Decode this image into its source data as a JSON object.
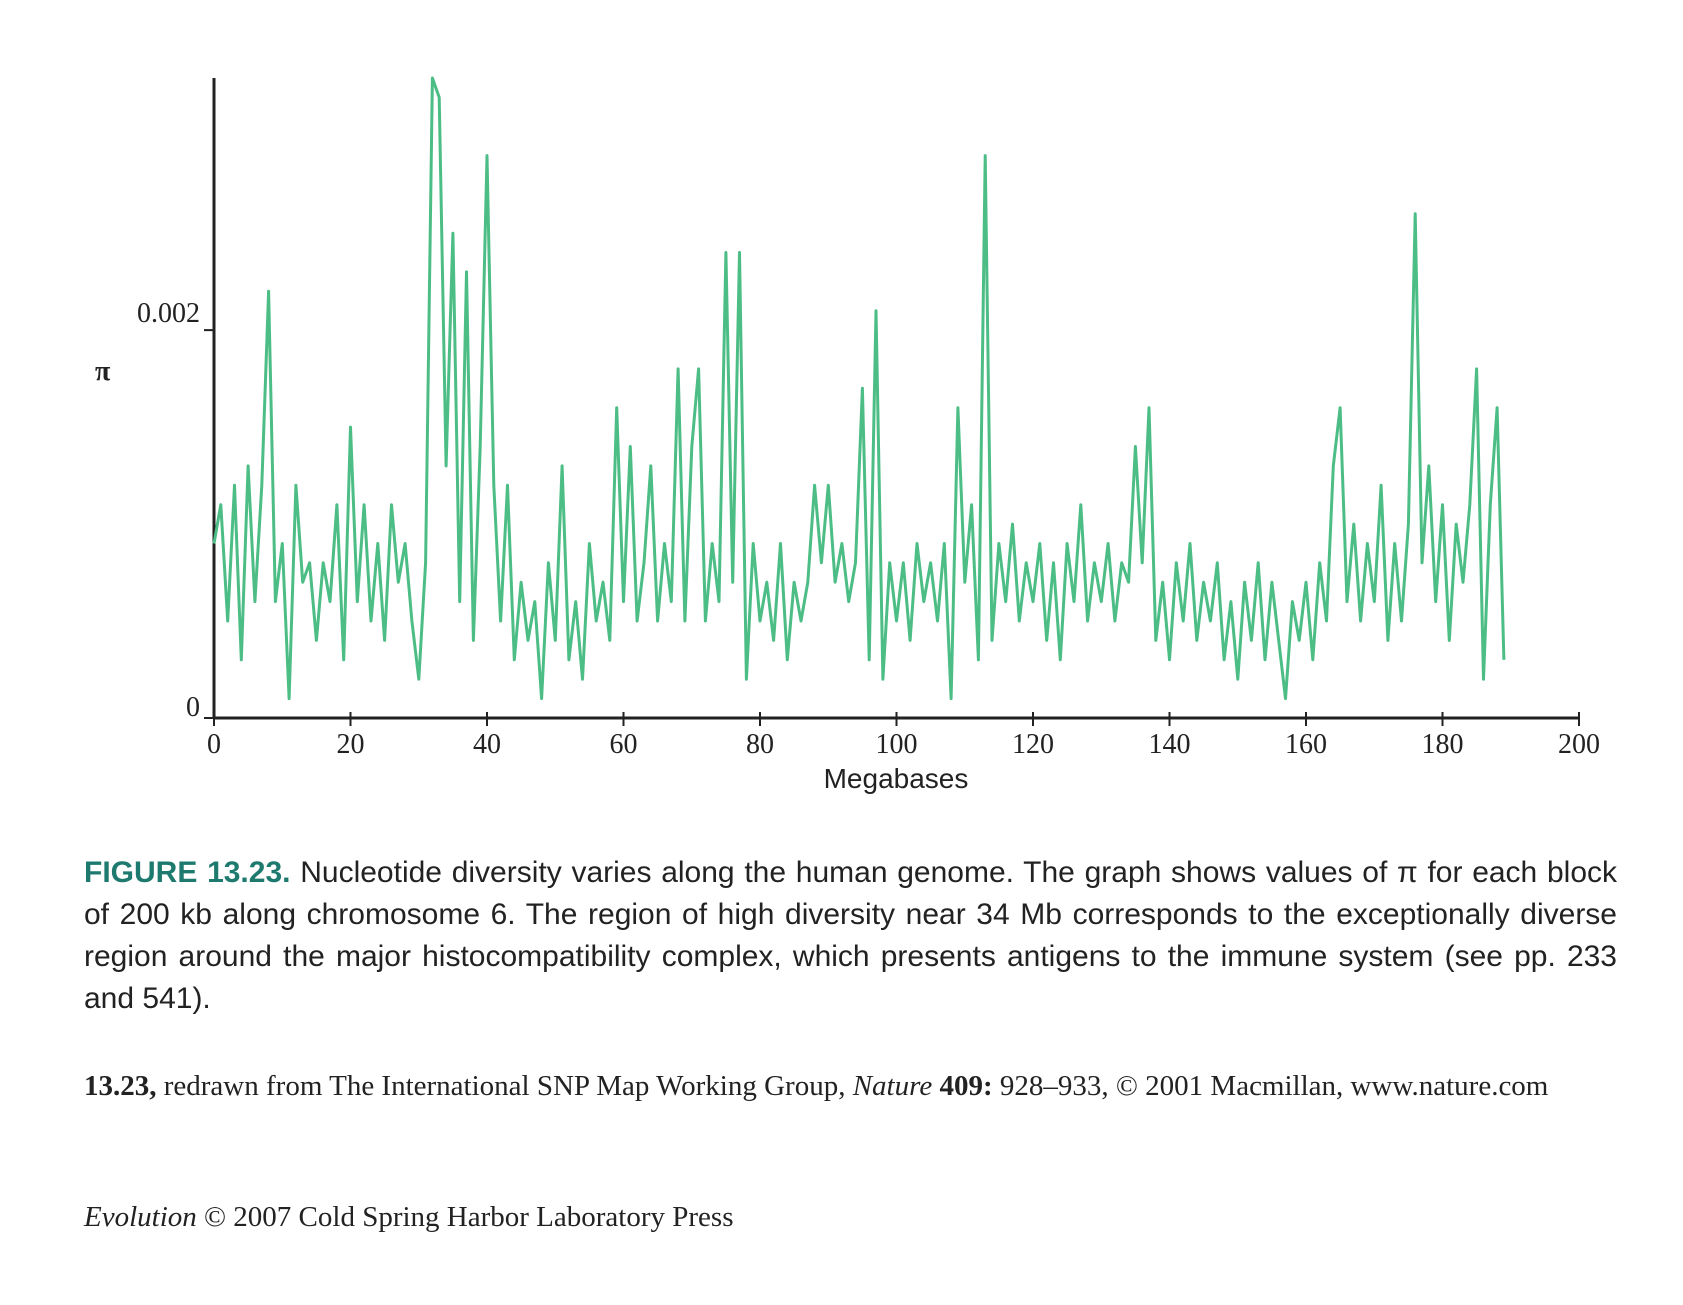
{
  "chart_data": {
    "type": "line",
    "ylabel": "π",
    "xlabel": "Megabases",
    "color": "#4dbd86",
    "xlim": [
      0,
      200
    ],
    "xticks": [
      0,
      20,
      40,
      60,
      80,
      100,
      120,
      140,
      160,
      180,
      200
    ],
    "ylim": [
      0,
      0.0033
    ],
    "yticks": [
      0,
      0.002
    ],
    "x": [
      0,
      1,
      2,
      3,
      4,
      5,
      6,
      7,
      8,
      9,
      10,
      11,
      12,
      13,
      14,
      15,
      16,
      17,
      18,
      19,
      20,
      21,
      22,
      23,
      24,
      25,
      26,
      27,
      28,
      29,
      30,
      31,
      32,
      33,
      34,
      35,
      36,
      37,
      38,
      39,
      40,
      41,
      42,
      43,
      44,
      45,
      46,
      47,
      48,
      49,
      50,
      51,
      52,
      53,
      54,
      55,
      56,
      57,
      58,
      59,
      60,
      61,
      62,
      63,
      64,
      65,
      66,
      67,
      68,
      69,
      70,
      71,
      72,
      73,
      74,
      75,
      76,
      77,
      78,
      79,
      80,
      81,
      82,
      83,
      84,
      85,
      86,
      87,
      88,
      89,
      90,
      91,
      92,
      93,
      94,
      95,
      96,
      97,
      98,
      99,
      100,
      101,
      102,
      103,
      104,
      105,
      106,
      107,
      108,
      109,
      110,
      111,
      112,
      113,
      114,
      115,
      116,
      117,
      118,
      119,
      120,
      121,
      122,
      123,
      124,
      125,
      126,
      127,
      128,
      129,
      130,
      131,
      132,
      133,
      134,
      135,
      136,
      137,
      138,
      139,
      140,
      141,
      142,
      143,
      144,
      145,
      146,
      147,
      148,
      149,
      150,
      151,
      152,
      153,
      154,
      155,
      156,
      157,
      158,
      159,
      160,
      161,
      162,
      163,
      164,
      165,
      166,
      167,
      168,
      169,
      170,
      171,
      172,
      173,
      174,
      175,
      176,
      177,
      178,
      179,
      180,
      181,
      182,
      183,
      184,
      185,
      186,
      187,
      188,
      189
    ],
    "values": [
      0.0009,
      0.0011,
      0.0005,
      0.0012,
      0.0003,
      0.0013,
      0.0006,
      0.0012,
      0.0022,
      0.0006,
      0.0009,
      0.0001,
      0.0012,
      0.0007,
      0.0008,
      0.0004,
      0.0008,
      0.0006,
      0.0011,
      0.0003,
      0.0015,
      0.0006,
      0.0011,
      0.0005,
      0.0009,
      0.0004,
      0.0011,
      0.0007,
      0.0009,
      0.0005,
      0.0002,
      0.0008,
      0.0033,
      0.0032,
      0.0013,
      0.0025,
      0.0006,
      0.0023,
      0.0004,
      0.0014,
      0.0029,
      0.0012,
      0.0005,
      0.0012,
      0.0003,
      0.0007,
      0.0004,
      0.0006,
      0.0001,
      0.0008,
      0.0004,
      0.0013,
      0.0003,
      0.0006,
      0.0002,
      0.0009,
      0.0005,
      0.0007,
      0.0004,
      0.0016,
      0.0006,
      0.0014,
      0.0005,
      0.0008,
      0.0013,
      0.0005,
      0.0009,
      0.0006,
      0.0018,
      0.0005,
      0.0014,
      0.0018,
      0.0005,
      0.0009,
      0.0006,
      0.0024,
      0.0007,
      0.0024,
      0.0002,
      0.0009,
      0.0005,
      0.0007,
      0.0004,
      0.0009,
      0.0003,
      0.0007,
      0.0005,
      0.0007,
      0.0012,
      0.0008,
      0.0012,
      0.0007,
      0.0009,
      0.0006,
      0.0008,
      0.0017,
      0.0003,
      0.0021,
      0.0002,
      0.0008,
      0.0005,
      0.0008,
      0.0004,
      0.0009,
      0.0006,
      0.0008,
      0.0005,
      0.0009,
      0.0001,
      0.0016,
      0.0007,
      0.0011,
      0.0003,
      0.0029,
      0.0004,
      0.0009,
      0.0006,
      0.001,
      0.0005,
      0.0008,
      0.0006,
      0.0009,
      0.0004,
      0.0008,
      0.0003,
      0.0009,
      0.0006,
      0.0011,
      0.0005,
      0.0008,
      0.0006,
      0.0009,
      0.0005,
      0.0008,
      0.0007,
      0.0014,
      0.0008,
      0.0016,
      0.0004,
      0.0007,
      0.0003,
      0.0008,
      0.0005,
      0.0009,
      0.0004,
      0.0007,
      0.0005,
      0.0008,
      0.0003,
      0.0006,
      0.0002,
      0.0007,
      0.0004,
      0.0008,
      0.0003,
      0.0007,
      0.0004,
      0.0001,
      0.0006,
      0.0004,
      0.0007,
      0.0003,
      0.0008,
      0.0005,
      0.0013,
      0.0016,
      0.0006,
      0.001,
      0.0005,
      0.0009,
      0.0006,
      0.0012,
      0.0004,
      0.0009,
      0.0005,
      0.001,
      0.0026,
      0.0008,
      0.0013,
      0.0006,
      0.0011,
      0.0004,
      0.001,
      0.0007,
      0.0011,
      0.0018,
      0.0002,
      0.0011,
      0.0016,
      0.0003
    ]
  },
  "caption": {
    "label": "FIGURE 13.23.",
    "text": "Nucleotide diversity varies along the human genome. The graph shows values of π for each block of 200 kb along chromosome 6. The region of high diversity near 34 Mb corresponds to the exceptionally diverse region around the major histocompatibility complex, which presents antigens to the immune system (see pp. 233 and 541)."
  },
  "credit": {
    "figure": "13.23,",
    "text": "redrawn from The International SNP Map Working Group,",
    "journal": "Nature",
    "volume": "409:",
    "rest": "928–933, © 2001 Macmillan, www.nature.com"
  },
  "footer": {
    "book": "Evolution",
    "text": "© 2007 Cold Spring Harbor Laboratory Press"
  }
}
